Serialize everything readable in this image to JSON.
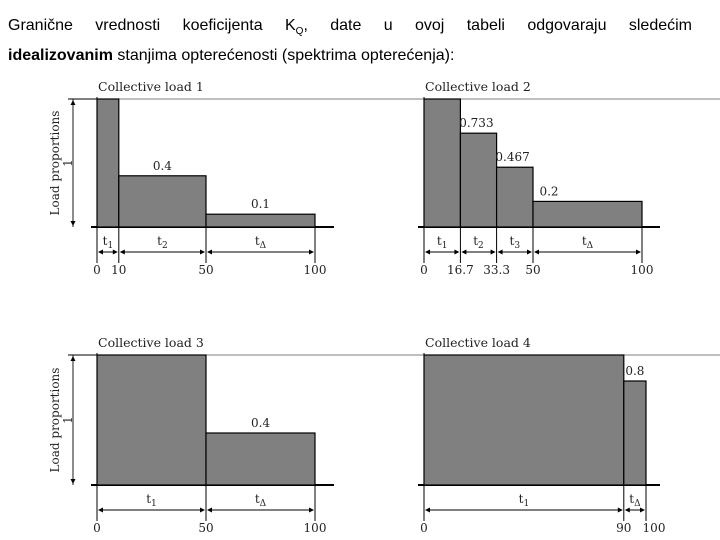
{
  "intro": {
    "line1_before": "Granične vrednosti koeficijenta K",
    "subscript": "Q",
    "line1_after": ", date u ovoj tabeli odgovaraju sledećim",
    "line2_bold": "idealizovanim",
    "line2_rest": " stanjima opterećenosti (spektrima opterećenja):"
  },
  "colors": {
    "bar": "#808080",
    "line": "#000000",
    "axis_text": "#222222"
  },
  "chart_data": [
    {
      "type": "bar",
      "title": "Collective load 1",
      "ylabel": "Load proportions",
      "ylim": [
        0,
        1
      ],
      "ytick": "1",
      "xlim": [
        0,
        100
      ],
      "segments": [
        {
          "start": 0,
          "end": 10,
          "value": 1,
          "label": "",
          "phase": "t",
          "phase_sub": "1"
        },
        {
          "start": 10,
          "end": 50,
          "value": 0.4,
          "label": "0.4",
          "phase": "t",
          "phase_sub": "2"
        },
        {
          "start": 50,
          "end": 100,
          "value": 0.1,
          "label": "0.1",
          "phase": "t",
          "phase_sub": "Δ"
        }
      ],
      "ticks": [
        "0",
        "10",
        "50",
        "100"
      ]
    },
    {
      "type": "bar",
      "title": "Collective load 2",
      "ylim": [
        0,
        1
      ],
      "xlim": [
        0,
        100
      ],
      "segments": [
        {
          "start": 0,
          "end": 16.7,
          "value": 1,
          "label": "",
          "phase": "t",
          "phase_sub": "1"
        },
        {
          "start": 16.7,
          "end": 33.3,
          "value": 0.733,
          "label": "0.733",
          "phase": "t",
          "phase_sub": "2"
        },
        {
          "start": 33.3,
          "end": 50,
          "value": 0.467,
          "label": "0.467",
          "phase": "t",
          "phase_sub": "3"
        },
        {
          "start": 50,
          "end": 100,
          "value": 0.2,
          "label": "0.2",
          "phase": "t",
          "phase_sub": "Δ"
        }
      ],
      "ticks": [
        "0",
        "16.7",
        "33.3",
        "50",
        "100"
      ]
    },
    {
      "type": "bar",
      "title": "Collective load 3",
      "ylabel": "Load proportions",
      "ylim": [
        0,
        1
      ],
      "ytick": "1",
      "xlim": [
        0,
        100
      ],
      "segments": [
        {
          "start": 0,
          "end": 50,
          "value": 1,
          "label": "",
          "phase": "t",
          "phase_sub": "1"
        },
        {
          "start": 50,
          "end": 100,
          "value": 0.4,
          "label": "0.4",
          "phase": "t",
          "phase_sub": "Δ"
        }
      ],
      "ticks": [
        "0",
        "50",
        "100"
      ]
    },
    {
      "type": "bar",
      "title": "Collective load 4",
      "ylim": [
        0,
        1
      ],
      "xlim": [
        0,
        100
      ],
      "segments": [
        {
          "start": 0,
          "end": 90,
          "value": 1,
          "label": "",
          "phase": "t",
          "phase_sub": "1"
        },
        {
          "start": 90,
          "end": 100,
          "value": 0.8,
          "label": "0.8",
          "phase": "t",
          "phase_sub": "Δ"
        }
      ],
      "ticks": [
        "0",
        "90",
        "100"
      ]
    }
  ]
}
